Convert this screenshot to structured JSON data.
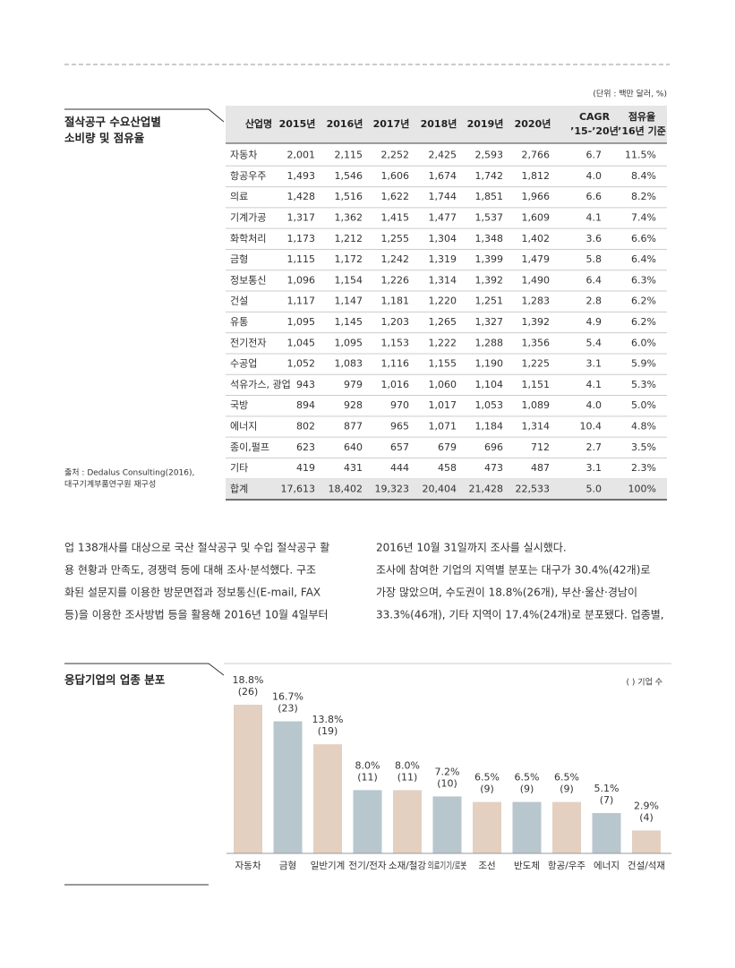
{
  "unit": "(단위 : 백만 달러, %)",
  "table": {
    "title_lines": [
      "절삭공구 수요산업별",
      "소비량 및 점유율"
    ],
    "source_lines": [
      "출처 : Dedalus Consulting(2016),",
      "대구기계부품연구원 재구성"
    ],
    "header": [
      [
        "산업명"
      ],
      [
        "2015년"
      ],
      [
        "2016년"
      ],
      [
        "2017년"
      ],
      [
        "2018년"
      ],
      [
        "2019년"
      ],
      [
        "2020년"
      ],
      [
        "CAGR",
        "’15-’20년"
      ],
      [
        "점유율",
        "’16년 기준"
      ]
    ],
    "rows": [
      [
        "자동차",
        "2,001",
        "2,115",
        "2,252",
        "2,425",
        "2,593",
        "2,766",
        "6.7",
        "11.5%"
      ],
      [
        "항공우주",
        "1,493",
        "1,546",
        "1,606",
        "1,674",
        "1,742",
        "1,812",
        "4.0",
        "8.4%"
      ],
      [
        "의료",
        "1,428",
        "1,516",
        "1,622",
        "1,744",
        "1,851",
        "1,966",
        "6.6",
        "8.2%"
      ],
      [
        "기계가공",
        "1,317",
        "1,362",
        "1,415",
        "1,477",
        "1,537",
        "1,609",
        "4.1",
        "7.4%"
      ],
      [
        "화학처리",
        "1,173",
        "1,212",
        "1,255",
        "1,304",
        "1,348",
        "1,402",
        "3.6",
        "6.6%"
      ],
      [
        "금형",
        "1,115",
        "1,172",
        "1,242",
        "1,319",
        "1,399",
        "1,479",
        "5.8",
        "6.4%"
      ],
      [
        "정보통신",
        "1,096",
        "1,154",
        "1,226",
        "1,314",
        "1,392",
        "1,490",
        "6.4",
        "6.3%"
      ],
      [
        "건설",
        "1,117",
        "1,147",
        "1,181",
        "1,220",
        "1,251",
        "1,283",
        "2.8",
        "6.2%"
      ],
      [
        "유통",
        "1,095",
        "1,145",
        "1,203",
        "1,265",
        "1,327",
        "1,392",
        "4.9",
        "6.2%"
      ],
      [
        "전기전자",
        "1,045",
        "1,095",
        "1,153",
        "1,222",
        "1,288",
        "1,356",
        "5.4",
        "6.0%"
      ],
      [
        "수공업",
        "1,052",
        "1,083",
        "1,116",
        "1,155",
        "1,190",
        "1,225",
        "3.1",
        "5.9%"
      ],
      [
        "석유가스, 광업",
        "943",
        "979",
        "1,016",
        "1,060",
        "1,104",
        "1,151",
        "4.1",
        "5.3%"
      ],
      [
        "국방",
        "894",
        "928",
        "970",
        "1,017",
        "1,053",
        "1,089",
        "4.0",
        "5.0%"
      ],
      [
        "에너지",
        "802",
        "877",
        "965",
        "1,071",
        "1,184",
        "1,314",
        "10.4",
        "4.8%"
      ],
      [
        "종이,펄프",
        "623",
        "640",
        "657",
        "679",
        "696",
        "712",
        "2.7",
        "3.5%"
      ],
      [
        "기타",
        "419",
        "431",
        "444",
        "458",
        "473",
        "487",
        "3.1",
        "2.3%"
      ],
      [
        "합계",
        "17,613",
        "18,402",
        "19,323",
        "20,404",
        "21,428",
        "22,533",
        "5.0",
        "100%"
      ]
    ]
  },
  "body": {
    "left_lines": [
      "업 138개사를 대상으로 국산 절삭공구 및 수입 절삭공구 활",
      "용 현황과 만족도, 경쟁력 등에 대해 조사·분석했다. 구조",
      "화된 설문지를 이용한 방문면접과 정보통신(E-mail, FAX",
      "등)을 이용한 조사방법 등을 활용해 2016년 10월 4일부터"
    ],
    "right_lines": [
      "2016년 10월 31일까지 조사를 실시했다.",
      "조사에 참여한 기업의 지역별 분포는 대구가 30.4%(42개)로",
      "가장 많았으며, 수도권이 18.8%(26개), 부산·울산·경남이",
      "33.3%(46개), 기타 지역이 17.4%(24개)로 분포됐다. 업종별,"
    ]
  },
  "chart_data": {
    "type": "bar",
    "title": "응답기업의 업종 분포",
    "note": "( ) 기업 수",
    "categories": [
      "자동차",
      "금형",
      "일반기계",
      "전기/전자",
      "소재/철강",
      "의료기기/로봇",
      "조선",
      "반도체",
      "항공/우주",
      "에너지",
      "건설/석재"
    ],
    "values": [
      18.8,
      16.7,
      13.8,
      8.0,
      8.0,
      7.2,
      6.5,
      6.5,
      6.5,
      5.1,
      2.9
    ],
    "value_labels": [
      "18.8%",
      "16.7%",
      "13.8%",
      "8.0%",
      "8.0%",
      "7.2%",
      "6.5%",
      "6.5%",
      "6.5%",
      "5.1%",
      "2.9%"
    ],
    "count_labels": [
      "(26)",
      "(23)",
      "(19)",
      "(11)",
      "(11)",
      "(10)",
      "(9)",
      "(9)",
      "(9)",
      "(7)",
      "(4)"
    ],
    "colors": [
      "#e4d0c1",
      "#b8c6cd",
      "#e4d0c1",
      "#b8c6cd",
      "#e4d0c1",
      "#b8c6cd",
      "#e4d0c1",
      "#b8c6cd",
      "#e4d0c1",
      "#b8c6cd",
      "#e4d0c1"
    ]
  }
}
